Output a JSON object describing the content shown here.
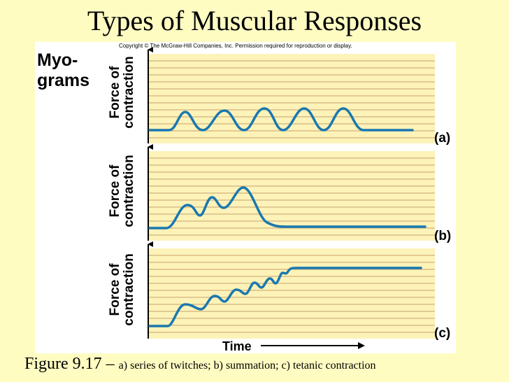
{
  "title": "Types of Muscular Responses",
  "copyright": "Copyright © The McGraw-Hill Companies, Inc. Permission required for reproduction or display.",
  "myograms_label": [
    "Myo-",
    "grams"
  ],
  "y_axis_label": [
    "Force of",
    "contraction"
  ],
  "x_axis_label": "Time",
  "panels": [
    {
      "label": "(a)",
      "description": "series of twitches"
    },
    {
      "label": "(b)",
      "description": "summation"
    },
    {
      "label": "(c)",
      "description": "tetanic contraction"
    }
  ],
  "caption": {
    "figure": "Figure 9.17",
    "dash": "–",
    "text": "a) series of twitches; b) summation; c) tetanic contraction"
  },
  "colors": {
    "background": "#fffcc2",
    "panel_fill": "#fdf3b8",
    "panel_line": "#c8a070",
    "trace": "#1a78b0"
  }
}
